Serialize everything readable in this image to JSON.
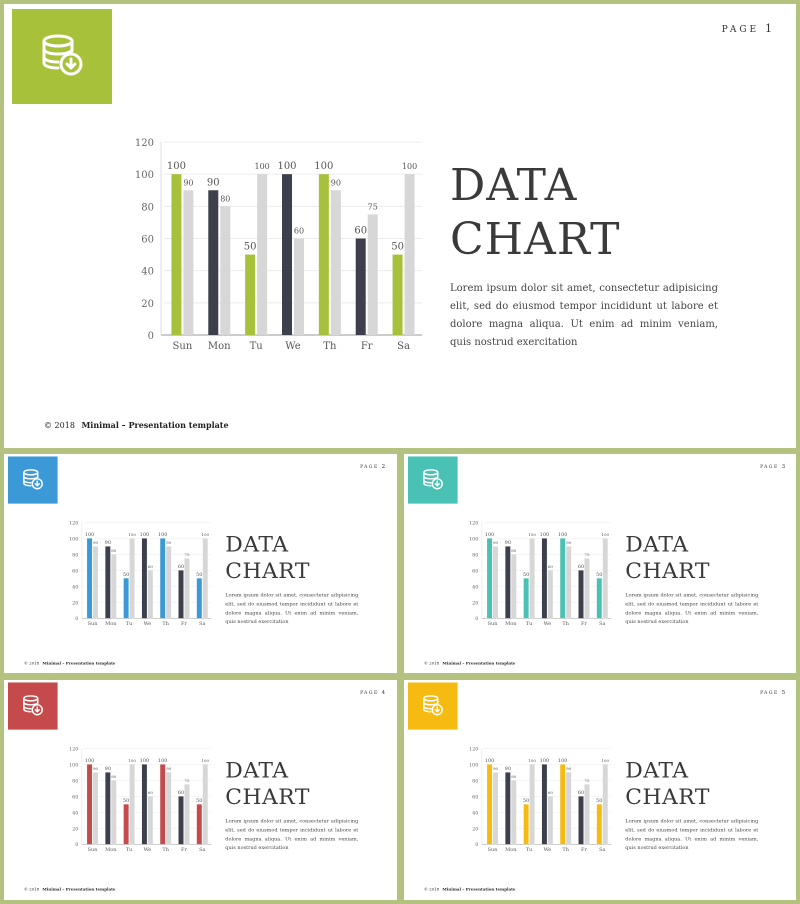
{
  "chart_data": {
    "type": "bar",
    "categories": [
      "Sun",
      "Mon",
      "Tu",
      "We",
      "Th",
      "Fr",
      "Sa"
    ],
    "series": [
      {
        "values": [
          100,
          90,
          50,
          100,
          100,
          60,
          50
        ]
      },
      {
        "values": [
          90,
          80,
          100,
          60,
          90,
          75,
          100
        ]
      }
    ],
    "ylim": [
      0,
      120
    ],
    "yticks": [
      0,
      20,
      40,
      60,
      80,
      100,
      120
    ],
    "grid": true,
    "title": "",
    "xlabel": "",
    "ylabel": ""
  },
  "colors": {
    "frame": "#b3c27e",
    "dark_bar": "#3d404c",
    "light_bar": "#d7d7d7",
    "slide_accents": [
      "#a8c13b",
      "#3a99d6",
      "#49c1b5",
      "#c44a4b",
      "#f5bb11"
    ]
  },
  "icon": "database-download-icon",
  "slides": [
    {
      "page_text": "PAGE",
      "page_num": "1"
    },
    {
      "page_text": "PAGE",
      "page_num": "2"
    },
    {
      "page_text": "PAGE",
      "page_num": "3"
    },
    {
      "page_text": "PAGE",
      "page_num": "4"
    },
    {
      "page_text": "PAGE",
      "page_num": "5"
    }
  ],
  "heading": {
    "line1": "DATA",
    "line2": "CHART"
  },
  "body": "Lorem ipsum dolor sit amet, consectetur adipisicing elit, sed do eiusmod tempor incididunt ut labore et dolore magna aliqua. Ut enim ad minim veniam, quis nostrud exercitation",
  "footer": {
    "copyright": "© 2018",
    "brand": "Minimal – Presentation template"
  }
}
